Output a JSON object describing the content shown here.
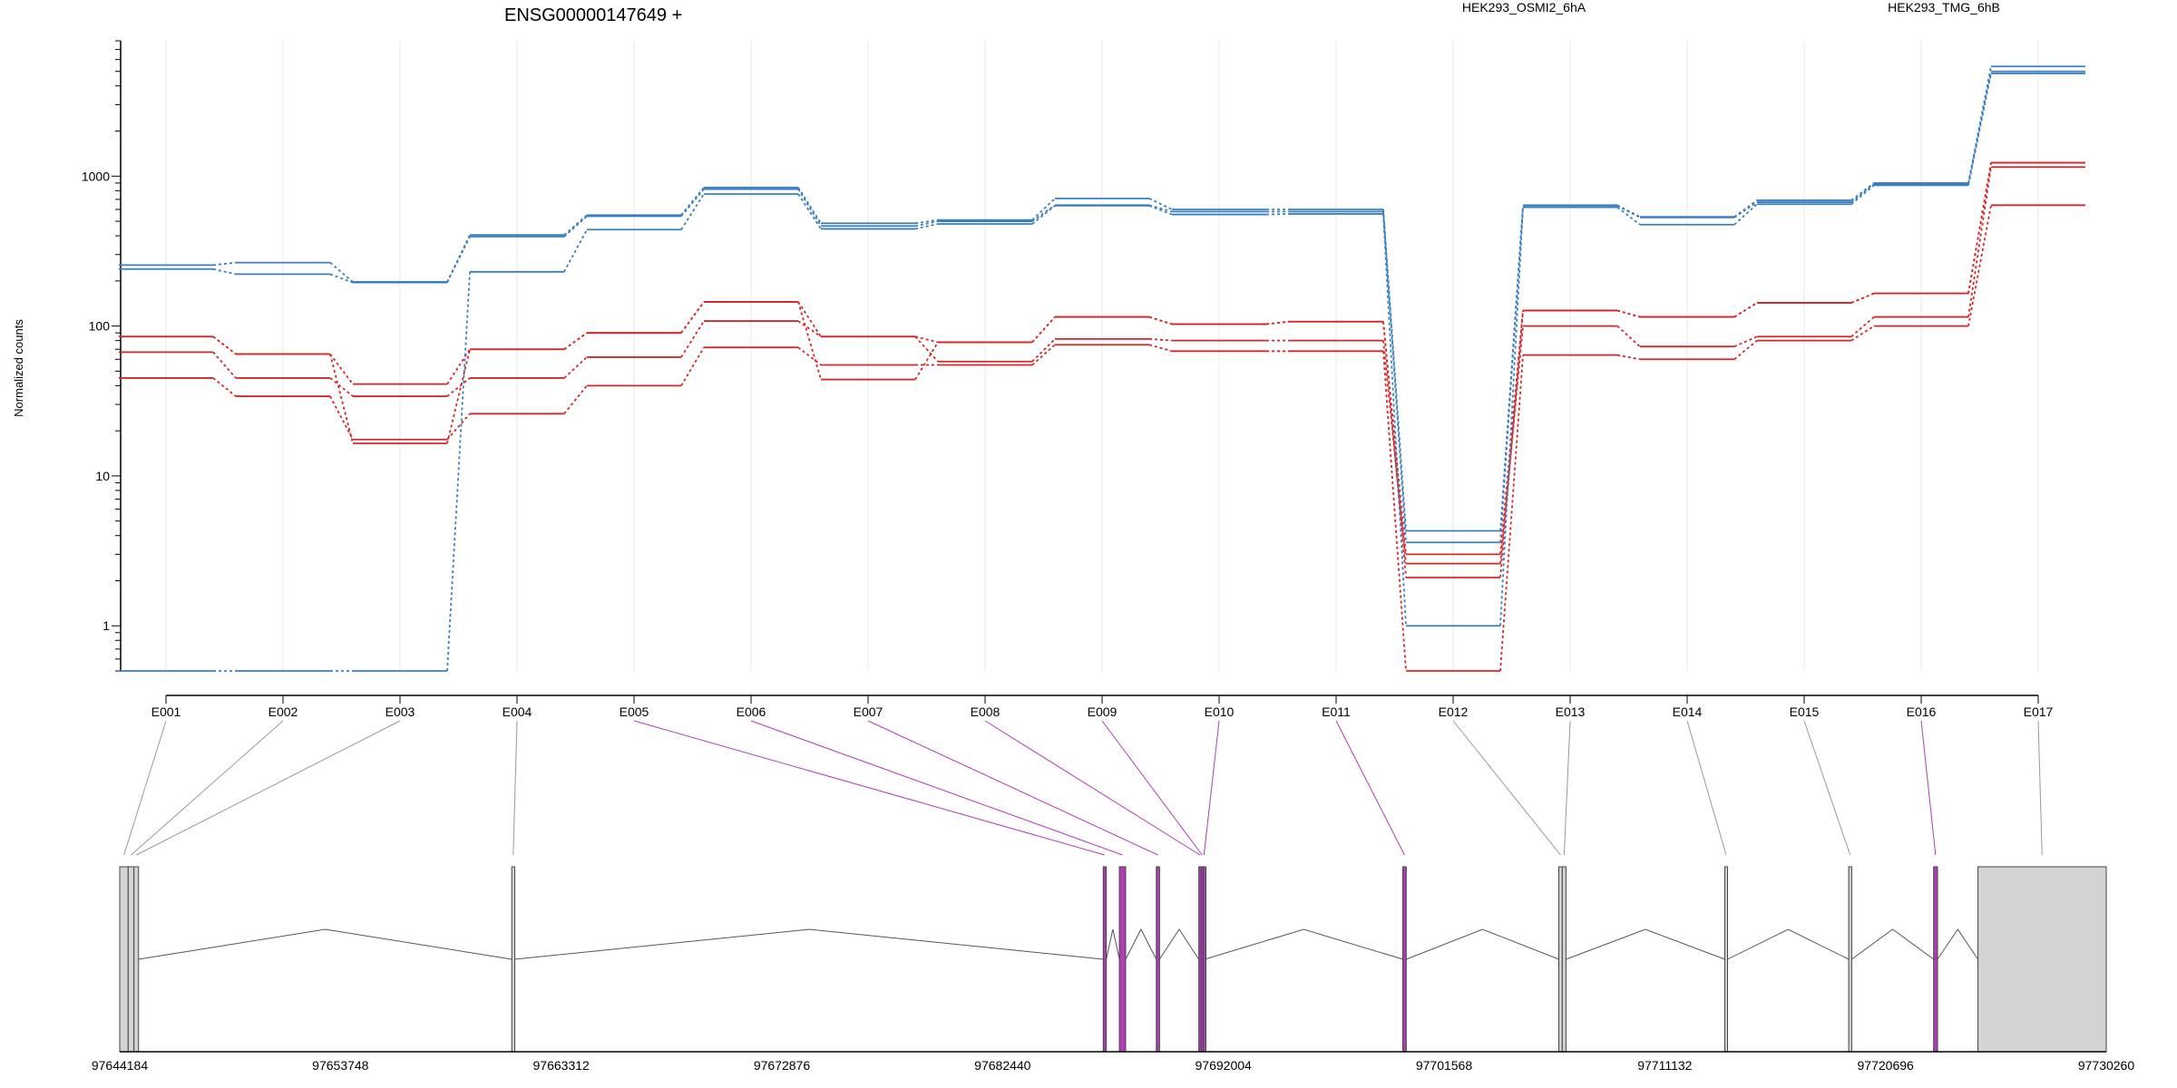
{
  "chart_data": {
    "type": "line",
    "title": "ENSG00000147649 +",
    "ylabel": "Normalized counts",
    "xlabel": "",
    "y_scale": "log",
    "ylim": [
      0.5,
      8000
    ],
    "y_ticks": [
      1,
      10,
      100,
      1000
    ],
    "y_tick_labels": [
      "1",
      "10",
      "100",
      "1000"
    ],
    "grid": "vertical",
    "legend": [
      {
        "name": "HEK293_OSMI2_6hA",
        "color": "#d62728",
        "placement": "top-center"
      },
      {
        "name": "HEK293_TMG_6hB",
        "color": "#3a7fc0",
        "placement": "top-right"
      }
    ],
    "categories": [
      "E001",
      "E002",
      "E003",
      "E004",
      "E005",
      "E006",
      "E007",
      "E008",
      "E009",
      "E010",
      "E011",
      "E012",
      "E013",
      "E014",
      "E015",
      "E016",
      "E017"
    ],
    "series": [
      {
        "color": "#d62728",
        "values": [
          85,
          65,
          41,
          70,
          90,
          145,
          85,
          78,
          115,
          103,
          107,
          3,
          127,
          115,
          143,
          165,
          1230
        ]
      },
      {
        "color": "#d62728",
        "values": [
          67,
          45,
          34,
          45,
          62,
          108,
          85,
          58,
          82,
          80,
          80,
          2.6,
          100,
          73,
          85,
          115,
          1150
        ]
      },
      {
        "color": "#d62728",
        "values": [
          45,
          34,
          17.5,
          26,
          40,
          72,
          55,
          55,
          75,
          68,
          68,
          0.5,
          64,
          60,
          80,
          100,
          640
        ]
      },
      {
        "color": "#d62728",
        "values": [
          85,
          65,
          16.5,
          70,
          90,
          145,
          44,
          78,
          115,
          103,
          107,
          2.1,
          127,
          115,
          143,
          165,
          1230
        ]
      },
      {
        "color": "#3a7fc0",
        "values": [
          255,
          265,
          197,
          405,
          550,
          840,
          485,
          510,
          710,
          600,
          600,
          4.3,
          640,
          535,
          690,
          900,
          5400
        ]
      },
      {
        "color": "#3a7fc0",
        "values": [
          240,
          222,
          195,
          395,
          540,
          820,
          465,
          500,
          640,
          580,
          580,
          3.6,
          635,
          530,
          670,
          890,
          5000
        ]
      },
      {
        "color": "#3a7fc0",
        "values": [
          0.5,
          0.5,
          0.5,
          230,
          440,
          760,
          445,
          480,
          635,
          555,
          560,
          1.0,
          620,
          475,
          650,
          870,
          4850
        ]
      }
    ],
    "gene_model": {
      "coordinate_ticks": [
        "97644184",
        "97653748",
        "97663312",
        "97672876",
        "97682440",
        "97692004",
        "97701568",
        "97711132",
        "97720696",
        "97730260"
      ],
      "coord_range": [
        97644184,
        97730260
      ],
      "default_color": "#d3d3d3",
      "highlight_color": "#b03cb8",
      "exons": [
        {
          "id": "E001",
          "start": 97644184,
          "end": 97644550,
          "highlight": false
        },
        {
          "id": "E002",
          "start": 97644550,
          "end": 97644800,
          "highlight": false
        },
        {
          "id": "E003",
          "start": 97644800,
          "end": 97645000,
          "highlight": false
        },
        {
          "id": "E004",
          "start": 97661170,
          "end": 97661300,
          "highlight": false
        },
        {
          "id": "E005",
          "start": 97686800,
          "end": 97686930,
          "highlight": true
        },
        {
          "id": "E006",
          "start": 97687500,
          "end": 97687770,
          "highlight": true
        },
        {
          "id": "E007",
          "start": 97689100,
          "end": 97689240,
          "highlight": true
        },
        {
          "id": "E008",
          "start": 97690940,
          "end": 97691040,
          "highlight": true
        },
        {
          "id": "E009",
          "start": 97691040,
          "end": 97691130,
          "highlight": true
        },
        {
          "id": "E010",
          "start": 97691130,
          "end": 97691200,
          "highlight": true
        },
        {
          "id": "E011",
          "start": 97699780,
          "end": 97699930,
          "highlight": true
        },
        {
          "id": "E012",
          "start": 97706540,
          "end": 97706690,
          "highlight": false
        },
        {
          "id": "E013",
          "start": 97706690,
          "end": 97706850,
          "highlight": false
        },
        {
          "id": "E014",
          "start": 97713730,
          "end": 97713850,
          "highlight": false
        },
        {
          "id": "E015",
          "start": 97719100,
          "end": 97719230,
          "highlight": false
        },
        {
          "id": "E016",
          "start": 97722780,
          "end": 97722950,
          "highlight": true
        },
        {
          "id": "E017",
          "start": 97724700,
          "end": 97730260,
          "highlight": false
        }
      ]
    }
  }
}
